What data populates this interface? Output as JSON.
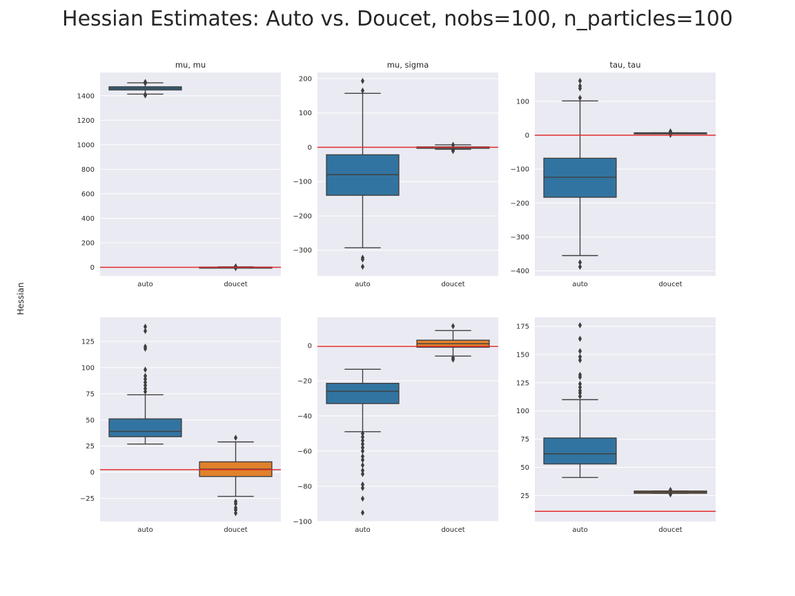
{
  "figure": {
    "title": "Hessian Estimates: Auto vs. Doucet, nobs=100, n_particles=100",
    "ylabel": "Hessian"
  },
  "colors": {
    "auto": "#3274a1",
    "doucet": "#e1812c",
    "refline": "#e32b2b",
    "panel_bg": "#eaeaf2",
    "grid": "#ffffff",
    "edge": "#3f3f3f",
    "text": "#262626"
  },
  "chart_data": [
    {
      "type": "box",
      "title": "mu, mu",
      "categories": [
        "auto",
        "doucet"
      ],
      "ylim": [
        -70,
        1590
      ],
      "yticks": [
        0,
        200,
        400,
        600,
        800,
        1000,
        1200,
        1400
      ],
      "refline": 0,
      "boxes": [
        {
          "name": "auto",
          "q1": 1447,
          "median": 1460,
          "q3": 1473,
          "whislo": 1413,
          "whishi": 1505,
          "fliers": [
            1512,
            1502,
            1410,
            1403
          ]
        },
        {
          "name": "doucet",
          "q1": -2,
          "median": 0,
          "q3": 2,
          "whislo": -4,
          "whishi": 4,
          "fliers": [
            8,
            -6
          ]
        }
      ]
    },
    {
      "type": "box",
      "title": "mu, sigma",
      "categories": [
        "auto",
        "doucet"
      ],
      "ylim": [
        -375,
        218
      ],
      "yticks": [
        -300,
        -200,
        -100,
        0,
        100,
        200
      ],
      "refline": 0,
      "boxes": [
        {
          "name": "auto",
          "q1": -140,
          "median": -80,
          "q3": -22,
          "whislo": -293,
          "whishi": 157,
          "fliers": [
            193,
            165,
            -322,
            -327,
            -348
          ]
        },
        {
          "name": "doucet",
          "q1": -3,
          "median": -1,
          "q3": 1,
          "whislo": -6,
          "whishi": 7,
          "fliers": [
            7,
            -8,
            -11
          ]
        }
      ]
    },
    {
      "type": "box",
      "title": "tau, tau",
      "categories": [
        "auto",
        "doucet"
      ],
      "ylim": [
        -415,
        185
      ],
      "yticks": [
        -400,
        -300,
        -200,
        -100,
        0,
        100
      ],
      "refline": 0,
      "boxes": [
        {
          "name": "auto",
          "q1": -183,
          "median": -124,
          "q3": -68,
          "whislo": -355,
          "whishi": 101,
          "fliers": [
            160,
            145,
            138,
            110,
            -375,
            -388
          ]
        },
        {
          "name": "doucet",
          "q1": 5,
          "median": 6,
          "q3": 7,
          "whislo": 5,
          "whishi": 7,
          "fliers": [
            11,
            8,
            1
          ]
        }
      ]
    },
    {
      "type": "box",
      "title": "",
      "categories": [
        "auto",
        "doucet"
      ],
      "ylim": [
        -47,
        148
      ],
      "yticks": [
        -25,
        0,
        25,
        50,
        75,
        100,
        125
      ],
      "refline": 2.5,
      "boxes": [
        {
          "name": "auto",
          "q1": 34,
          "median": 39,
          "q3": 51,
          "whislo": 27,
          "whishi": 74,
          "fliers": [
            139,
            135,
            120,
            118,
            98,
            92,
            89,
            86,
            83,
            80,
            77
          ]
        },
        {
          "name": "doucet",
          "q1": -4,
          "median": 3,
          "q3": 10,
          "whislo": -23,
          "whishi": 29,
          "fliers": [
            33,
            -28,
            -30,
            -34,
            -36,
            -39
          ]
        }
      ]
    },
    {
      "type": "box",
      "title": "",
      "categories": [
        "auto",
        "doucet"
      ],
      "ylim": [
        -100,
        16
      ],
      "yticks": [
        -100,
        -80,
        -60,
        -40,
        -20,
        0
      ],
      "refline": -0.5,
      "boxes": [
        {
          "name": "auto",
          "q1": -33,
          "median": -26,
          "q3": -21.5,
          "whislo": -49,
          "whishi": -13.5,
          "fliers": [
            -50,
            -52,
            -54,
            -56,
            -58,
            -60,
            -63,
            -65,
            -68,
            -71,
            -73,
            -79,
            -81,
            -87,
            -95
          ]
        },
        {
          "name": "doucet",
          "q1": -1,
          "median": 1,
          "q3": 3,
          "whislo": -6,
          "whishi": 8.5,
          "fliers": [
            11,
            -7,
            -8
          ]
        }
      ]
    },
    {
      "type": "box",
      "title": "",
      "categories": [
        "auto",
        "doucet"
      ],
      "ylim": [
        2,
        183
      ],
      "yticks": [
        25,
        50,
        75,
        100,
        125,
        150,
        175
      ],
      "refline": 11,
      "boxes": [
        {
          "name": "auto",
          "q1": 53,
          "median": 62,
          "q3": 76,
          "whislo": 41,
          "whishi": 110,
          "fliers": [
            176,
            164,
            153,
            148,
            145,
            132,
            130,
            124,
            121,
            118,
            116,
            113
          ]
        },
        {
          "name": "doucet",
          "q1": 27,
          "median": 28,
          "q3": 29,
          "whislo": 27,
          "whishi": 29,
          "fliers": [
            30,
            26
          ]
        }
      ]
    }
  ]
}
